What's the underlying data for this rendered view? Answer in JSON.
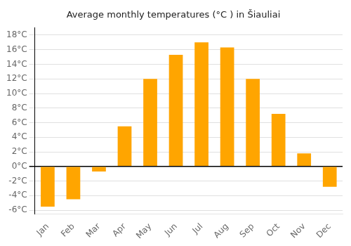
{
  "chart_data": {
    "type": "bar",
    "title": "Average monthly temperatures (°C ) in Šiauliai",
    "categories": [
      "Jan",
      "Feb",
      "Mar",
      "Apr",
      "May",
      "Jun",
      "Jul",
      "Aug",
      "Sep",
      "Oct",
      "Nov",
      "Dec"
    ],
    "values": [
      -5.5,
      -4.5,
      -0.7,
      5.5,
      12.0,
      15.3,
      17.0,
      16.3,
      12.0,
      7.2,
      1.8,
      -2.8
    ],
    "color": "#FFA500",
    "ylim": [
      -6.5,
      19
    ],
    "yticks": [
      {
        "value": -6,
        "label": "-6°C"
      },
      {
        "value": -4,
        "label": "-4°C"
      },
      {
        "value": -2,
        "label": "-2°C"
      },
      {
        "value": 0,
        "label": "0°C"
      },
      {
        "value": 2,
        "label": "2°C"
      },
      {
        "value": 4,
        "label": "4°C"
      },
      {
        "value": 6,
        "label": "6°C"
      },
      {
        "value": 8,
        "label": "8°C"
      },
      {
        "value": 10,
        "label": "10°C"
      },
      {
        "value": 12,
        "label": "12°C"
      },
      {
        "value": 14,
        "label": "14°C"
      },
      {
        "value": 16,
        "label": "16°C"
      },
      {
        "value": 18,
        "label": "18°C"
      }
    ],
    "grid": true
  }
}
